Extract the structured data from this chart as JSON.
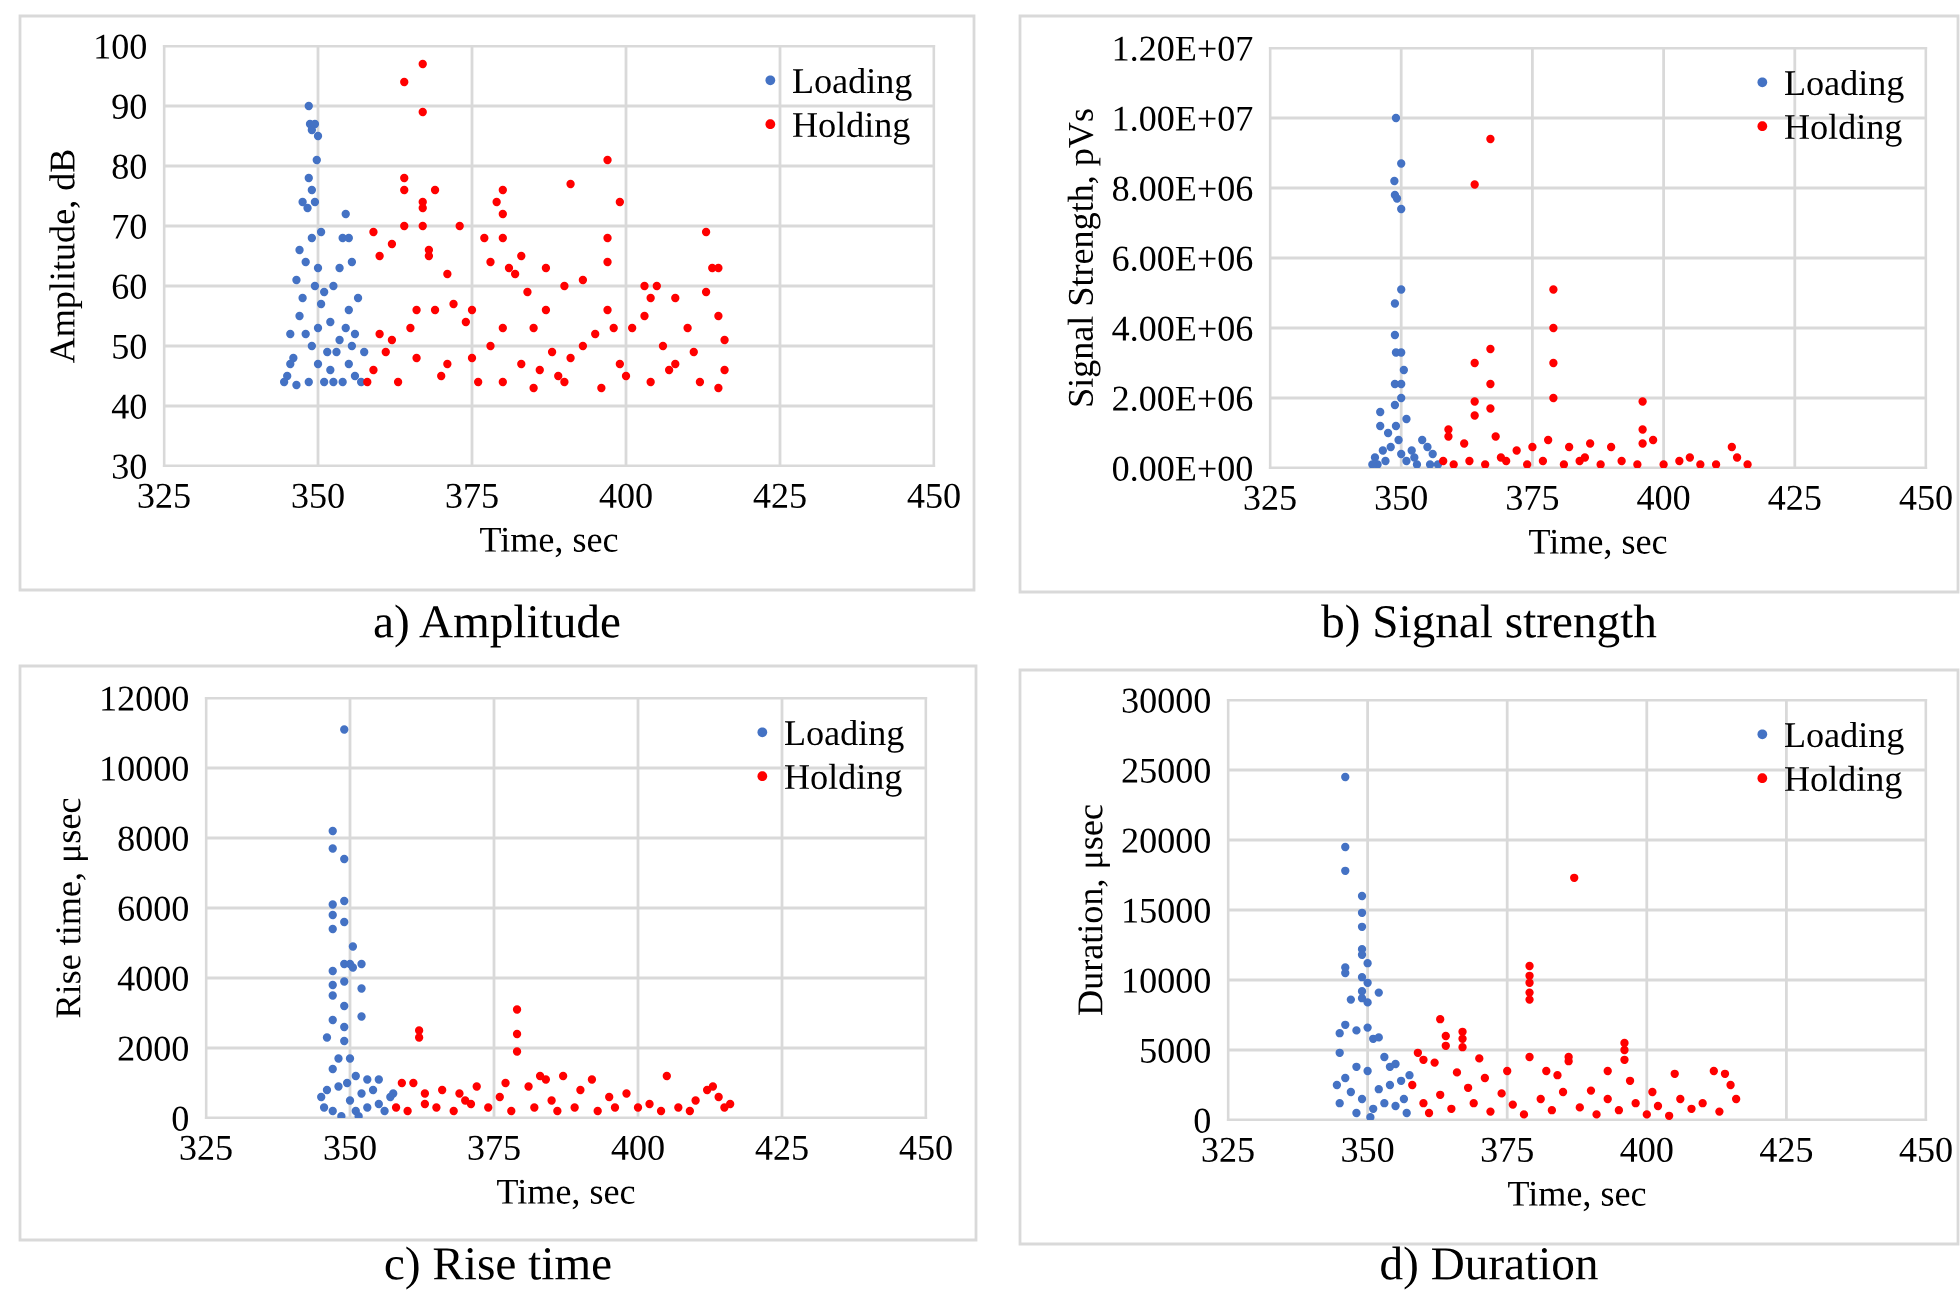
{
  "chart_data": [
    {
      "type": "scatter",
      "title": "a) Amplitude",
      "xlabel": "Time, sec",
      "ylabel": "Amplitude, dB",
      "xlim": [
        325,
        450
      ],
      "xticks": [
        325,
        350,
        375,
        400,
        425,
        450
      ],
      "ylim": [
        30,
        100
      ],
      "yticks": [
        30,
        40,
        50,
        60,
        70,
        80,
        90,
        100
      ],
      "grid": true,
      "legend": "top right",
      "marker": "circle",
      "series": [
        {
          "name": "Loading",
          "color": "#4472c4",
          "x": [
            348.5,
            348.7,
            349,
            349.5,
            350,
            349.8,
            348.5,
            349,
            347.5,
            349.5,
            348.3,
            350.5,
            349,
            347,
            348,
            350,
            346.5,
            351,
            354.5,
            354,
            355,
            353.5,
            355.5,
            352.5,
            356.5,
            355,
            345.5,
            346,
            345,
            344.5,
            347,
            348,
            349,
            350,
            351,
            352,
            353,
            354,
            355,
            356,
            357,
            357.5,
            346.5,
            348.5,
            350.5,
            352,
            353.5,
            356,
            347.5,
            349.5,
            351.5,
            354.5,
            345.5,
            350,
            352.5,
            355.5
          ],
          "values": [
            90,
            87,
            86,
            87,
            85,
            81,
            78,
            76,
            74,
            74,
            73,
            69,
            68,
            66,
            64,
            63,
            61,
            59,
            72,
            68,
            68,
            63,
            64,
            60,
            58,
            56,
            52,
            48,
            45,
            44,
            55,
            52,
            50,
            47,
            44,
            46,
            49,
            44,
            47,
            45,
            44,
            49,
            43.5,
            44,
            57,
            54,
            51,
            52,
            58,
            60,
            49,
            53,
            47,
            53,
            44,
            50
          ]
        },
        {
          "name": "Holding",
          "color": "#ff0000",
          "x": [
            364,
            367,
            367,
            364,
            364,
            369,
            367,
            367,
            364,
            367,
            373,
            368,
            368,
            359,
            360,
            362,
            377,
            380,
            379,
            380,
            380,
            378,
            383,
            382,
            381,
            384,
            387,
            387,
            390,
            391,
            393,
            397,
            399,
            397,
            397,
            397,
            403,
            405,
            404,
            408,
            403,
            413,
            414,
            415,
            413,
            415,
            416,
            416,
            415,
            410,
            412,
            408,
            406,
            401,
            399,
            396,
            393,
            390,
            388,
            385,
            383,
            380,
            378,
            376,
            374,
            372,
            371,
            369,
            366,
            365,
            363,
            361,
            360,
            359,
            358,
            362,
            370,
            375,
            380,
            386,
            391,
            395,
            400,
            404,
            407,
            411,
            371,
            375,
            366,
            385,
            398,
            389
          ],
          "values": [
            94,
            97,
            89,
            78,
            76,
            76,
            74,
            73,
            70,
            70,
            70,
            66,
            65,
            69,
            65,
            67,
            68,
            68,
            74,
            76,
            72,
            64,
            65,
            62,
            63,
            59,
            63,
            56,
            60,
            77,
            61,
            81,
            74,
            68,
            64,
            56,
            60,
            60,
            58,
            58,
            55,
            69,
            63,
            63,
            59,
            55,
            51,
            46,
            43,
            53,
            44,
            47,
            50,
            53,
            47,
            43,
            50,
            44,
            49,
            43,
            47,
            53,
            50,
            44,
            54,
            57,
            47,
            56,
            48,
            53,
            44,
            49,
            52,
            46,
            44,
            51,
            45,
            48,
            44,
            46,
            48,
            52,
            45,
            44,
            46,
            49,
            62,
            56,
            56,
            53,
            53,
            45
          ]
        }
      ]
    },
    {
      "type": "scatter",
      "title": "b) Signal strength",
      "xlabel": "Time, sec",
      "ylabel": "Signal Strength, pVs",
      "xlim": [
        325,
        450
      ],
      "xticks": [
        325,
        350,
        375,
        400,
        425,
        450
      ],
      "ylim": [
        0,
        12000000
      ],
      "yticks": [
        {
          "value": 0,
          "label": "0.00E+00"
        },
        {
          "value": 2000000,
          "label": "2.00E+06"
        },
        {
          "value": 4000000,
          "label": "4.00E+06"
        },
        {
          "value": 6000000,
          "label": "6.00E+06"
        },
        {
          "value": 8000000,
          "label": "8.00E+06"
        },
        {
          "value": 10000000,
          "label": "1.00E+07"
        },
        {
          "value": 12000000,
          "label": "1.20E+07"
        }
      ],
      "grid": true,
      "legend": "top right",
      "marker": "circle",
      "series": [
        {
          "name": "Loading",
          "color": "#4472c4",
          "x": [
            349,
            350,
            348.7,
            348.8,
            349.2,
            350,
            350,
            348.8,
            348.8,
            349,
            350,
            350.5,
            350,
            348.8,
            350,
            348.8,
            346,
            346,
            347.5,
            349,
            351,
            354,
            355,
            352,
            345,
            345.5,
            347,
            348,
            350,
            351,
            353,
            356,
            357,
            352.5,
            355.5,
            349.5,
            346.5,
            344.5
          ],
          "values": [
            10000000,
            8700000,
            8200000,
            7800000,
            7700000,
            7400000,
            5100000,
            4700000,
            3800000,
            3300000,
            3300000,
            2800000,
            2400000,
            2400000,
            2000000,
            1800000,
            1600000,
            1200000,
            1000000,
            1200000,
            1400000,
            800000,
            600000,
            500000,
            300000,
            100000,
            200000,
            600000,
            400000,
            200000,
            100000,
            400000,
            100000,
            300000,
            100000,
            800000,
            500000,
            100000
          ]
        },
        {
          "name": "Holding",
          "color": "#ff0000",
          "x": [
            364,
            367,
            364,
            364,
            364,
            367,
            367,
            367,
            379,
            379,
            379,
            379,
            396,
            396,
            396,
            398,
            378,
            386,
            382,
            390,
            413,
            359,
            359,
            362,
            368,
            372,
            375,
            405,
            358,
            360,
            363,
            366,
            370,
            374,
            377,
            381,
            384,
            388,
            392,
            395,
            400,
            403,
            407,
            410,
            414,
            416,
            369,
            385
          ],
          "values": [
            8100000,
            9400000,
            3000000,
            1900000,
            1500000,
            3400000,
            2400000,
            1700000,
            5100000,
            4000000,
            3000000,
            2000000,
            1900000,
            1100000,
            700000,
            800000,
            800000,
            700000,
            600000,
            600000,
            600000,
            1100000,
            900000,
            700000,
            900000,
            500000,
            600000,
            300000,
            200000,
            100000,
            200000,
            100000,
            200000,
            100000,
            200000,
            100000,
            200000,
            100000,
            200000,
            100000,
            100000,
            200000,
            100000,
            100000,
            300000,
            100000,
            300000,
            300000
          ]
        }
      ]
    },
    {
      "type": "scatter",
      "title": "c) Rise time",
      "xlabel": "Time, sec",
      "ylabel": "Rise time, μsec",
      "xlim": [
        325,
        450
      ],
      "xticks": [
        325,
        350,
        375,
        400,
        425,
        450
      ],
      "ylim": [
        0,
        12000
      ],
      "yticks": [
        0,
        2000,
        4000,
        6000,
        8000,
        10000,
        12000
      ],
      "grid": true,
      "legend": "top right",
      "marker": "circle",
      "series": [
        {
          "name": "Loading",
          "color": "#4472c4",
          "x": [
            349,
            347,
            347,
            349,
            347,
            347,
            347,
            349,
            349,
            350.5,
            349,
            350,
            350.5,
            352,
            352,
            347,
            347,
            347,
            349,
            349,
            349,
            349,
            346,
            347,
            352,
            350,
            348,
            347,
            351,
            353,
            355,
            346,
            345,
            345.5,
            347,
            348,
            350,
            351,
            352,
            353,
            354,
            355,
            356,
            357,
            357.5,
            348.5,
            351.5,
            349.5
          ],
          "values": [
            11100,
            8200,
            7700,
            7400,
            6100,
            5800,
            5400,
            6200,
            5600,
            4900,
            4400,
            4400,
            4300,
            4400,
            3700,
            4200,
            3800,
            3500,
            3900,
            3200,
            2600,
            2200,
            2300,
            2800,
            2900,
            1700,
            1700,
            1400,
            1200,
            1100,
            1100,
            800,
            600,
            300,
            200,
            900,
            500,
            200,
            700,
            300,
            800,
            400,
            200,
            600,
            700,
            50,
            50,
            1000
          ]
        },
        {
          "name": "Holding",
          "color": "#ff0000",
          "x": [
            362,
            362,
            379,
            379,
            379,
            383,
            384,
            387,
            392,
            405,
            413,
            377,
            359,
            361,
            366,
            369,
            372,
            376,
            381,
            385,
            390,
            395,
            398,
            400,
            402,
            404,
            407,
            410,
            412,
            414,
            415,
            416,
            358,
            360,
            363,
            365,
            368,
            370,
            374,
            378,
            382,
            386,
            389,
            393,
            396,
            409,
            363,
            371
          ],
          "values": [
            2500,
            2300,
            3100,
            2400,
            1900,
            1200,
            1100,
            1200,
            1100,
            1200,
            900,
            1000,
            1000,
            1000,
            800,
            700,
            900,
            600,
            900,
            500,
            800,
            600,
            700,
            300,
            400,
            200,
            300,
            500,
            800,
            600,
            300,
            400,
            300,
            200,
            400,
            300,
            200,
            500,
            300,
            200,
            300,
            200,
            300,
            200,
            300,
            200,
            700,
            400
          ]
        }
      ]
    },
    {
      "type": "scatter",
      "title": "d) Duration",
      "xlabel": "Time, sec",
      "ylabel": "Duration, μsec",
      "xlim": [
        325,
        450
      ],
      "xticks": [
        325,
        350,
        375,
        400,
        425,
        450
      ],
      "ylim": [
        0,
        30000
      ],
      "yticks": [
        0,
        5000,
        10000,
        15000,
        20000,
        25000,
        30000
      ],
      "grid": true,
      "legend": "top right",
      "marker": "circle",
      "series": [
        {
          "name": "Loading",
          "color": "#4472c4",
          "x": [
            346,
            346,
            346,
            349,
            349,
            349,
            349,
            349,
            346,
            346,
            350,
            349,
            350,
            349,
            349,
            352,
            347,
            350,
            346,
            345,
            348,
            350,
            351,
            352,
            353,
            354,
            355,
            345,
            344.5,
            345,
            346,
            347,
            348,
            349,
            350,
            351,
            352,
            353,
            354,
            355,
            356,
            356.5,
            357,
            357.5,
            348,
            350.5
          ],
          "values": [
            24500,
            19500,
            17800,
            16000,
            14800,
            13800,
            12200,
            11800,
            10900,
            10500,
            11200,
            10200,
            9800,
            9200,
            8700,
            9100,
            8600,
            8400,
            6800,
            6200,
            6400,
            6600,
            5800,
            5900,
            4500,
            3800,
            4000,
            4800,
            2500,
            1200,
            3000,
            2000,
            500,
            1500,
            3500,
            800,
            2200,
            1200,
            2500,
            1000,
            2800,
            1500,
            500,
            3200,
            3800,
            200
          ]
        },
        {
          "name": "Holding",
          "color": "#ff0000",
          "x": [
            387,
            379,
            379,
            379,
            379,
            379,
            363,
            364,
            367,
            367,
            367,
            364,
            396,
            396,
            396,
            386,
            386,
            379,
            359,
            360,
            362,
            370,
            375,
            382,
            393,
            405,
            412,
            414,
            415,
            397,
            401,
            390,
            384,
            371,
            366,
            358,
            360,
            361,
            363,
            365,
            368,
            369,
            372,
            374,
            376,
            378,
            381,
            383,
            385,
            388,
            391,
            393,
            395,
            398,
            400,
            402,
            404,
            406,
            408,
            410,
            413,
            416
          ],
          "values": [
            17300,
            11000,
            10300,
            9800,
            9100,
            8600,
            7200,
            6000,
            6300,
            5800,
            5200,
            5300,
            5500,
            5000,
            4300,
            4500,
            4200,
            4500,
            4800,
            4300,
            4100,
            4400,
            3500,
            3500,
            3500,
            3300,
            3500,
            3300,
            2500,
            2800,
            2000,
            2100,
            3200,
            3000,
            3400,
            2500,
            1200,
            500,
            1800,
            800,
            2300,
            1200,
            600,
            1900,
            1100,
            400,
            1500,
            700,
            2000,
            900,
            400,
            1500,
            700,
            1200,
            400,
            1000,
            300,
            1500,
            800,
            1200,
            600,
            1500
          ]
        }
      ]
    }
  ]
}
